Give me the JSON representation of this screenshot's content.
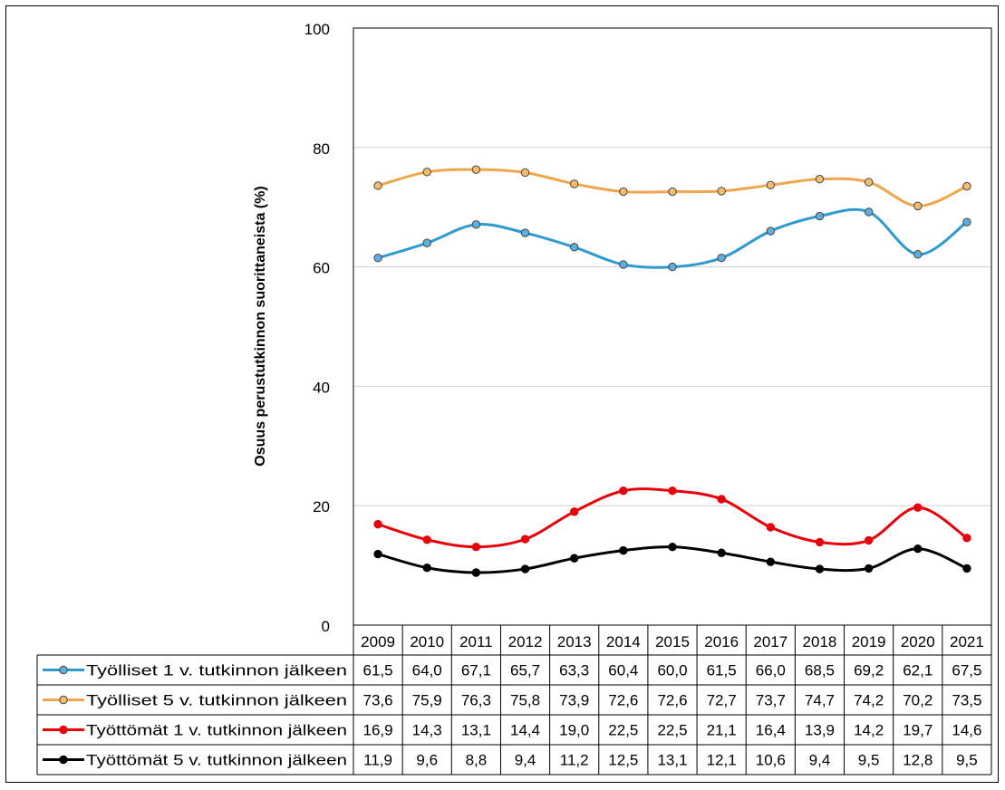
{
  "chart_data": {
    "type": "line",
    "ylabel": "Osuus  perustutkinnon suorittaneista (%)",
    "ylim": [
      0,
      100
    ],
    "yticks": [
      0,
      20,
      40,
      60,
      80,
      100
    ],
    "grid": true,
    "legend_placement": "data-table-left",
    "categories": [
      "2009",
      "2010",
      "2011",
      "2012",
      "2013",
      "2014",
      "2015",
      "2016",
      "2017",
      "2018",
      "2019",
      "2020",
      "2021"
    ],
    "series": [
      {
        "name": "Työlliset 1 v. tutkinnon jälkeen",
        "color": "#2E9AD0",
        "marker_fill": "#5BB0E0",
        "values": [
          61.5,
          64.0,
          67.1,
          65.7,
          63.3,
          60.4,
          60.0,
          61.5,
          66.0,
          68.5,
          69.2,
          62.1,
          67.5
        ],
        "labels": [
          "61,5",
          "64,0",
          "67,1",
          "65,7",
          "63,3",
          "60,4",
          "60,0",
          "61,5",
          "66,0",
          "68,5",
          "69,2",
          "62,1",
          "67,5"
        ]
      },
      {
        "name": "Työlliset 5 v. tutkinnon jälkeen",
        "color": "#F0A64C",
        "marker_fill": "#F6BC6E",
        "values": [
          73.6,
          75.9,
          76.3,
          75.8,
          73.9,
          72.6,
          72.6,
          72.7,
          73.7,
          74.7,
          74.2,
          70.2,
          73.5
        ],
        "labels": [
          "73,6",
          "75,9",
          "76,3",
          "75,8",
          "73,9",
          "72,6",
          "72,6",
          "72,7",
          "73,7",
          "74,7",
          "74,2",
          "70,2",
          "73,5"
        ]
      },
      {
        "name": "Työttömät 1 v. tutkinnon jälkeen",
        "color": "#E8000B",
        "marker_fill": "#E8000B",
        "values": [
          16.9,
          14.3,
          13.1,
          14.4,
          19.0,
          22.5,
          22.5,
          21.1,
          16.4,
          13.9,
          14.2,
          19.7,
          14.6
        ],
        "labels": [
          "16,9",
          "14,3",
          "13,1",
          "14,4",
          "19,0",
          "22,5",
          "22,5",
          "21,1",
          "16,4",
          "13,9",
          "14,2",
          "19,7",
          "14,6"
        ]
      },
      {
        "name": "Työttömät 5 v. tutkinnon jälkeen",
        "color": "#000000",
        "marker_fill": "#000000",
        "values": [
          11.9,
          9.6,
          8.8,
          9.4,
          11.2,
          12.5,
          13.1,
          12.1,
          10.6,
          9.4,
          9.5,
          12.8,
          9.5
        ],
        "labels": [
          "11,9",
          "9,6",
          "8,8",
          "9,4",
          "11,2",
          "12,5",
          "13,1",
          "12,1",
          "10,6",
          "9,4",
          "9,5",
          "12,8",
          "9,5"
        ]
      }
    ]
  }
}
